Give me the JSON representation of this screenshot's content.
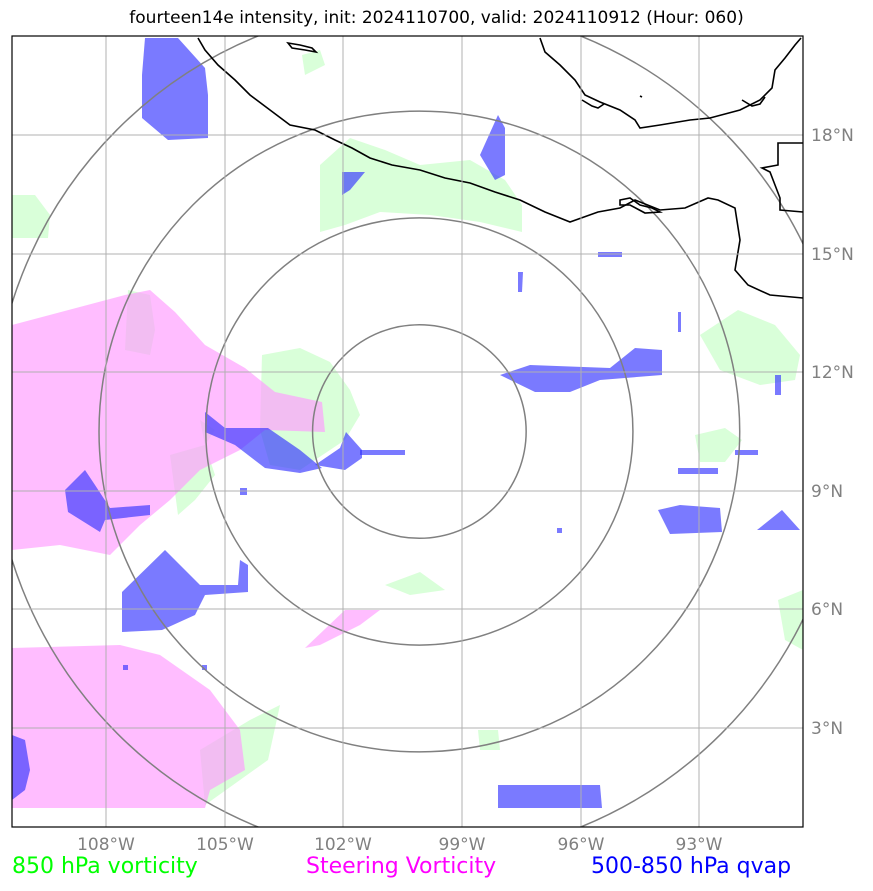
{
  "title": "fourteen14e intensity, init: 2024110700, valid: 2024110912 (Hour: 060)",
  "map": {
    "lon_labels": [
      "108°W",
      "105°W",
      "102°W",
      "99°W",
      "96°W",
      "93°W"
    ],
    "lat_labels": [
      "18°N",
      "15°N",
      "12°N",
      "9°N",
      "6°N",
      "3°N"
    ],
    "extent": {
      "lon_min": -110.5,
      "lon_max": -90.5,
      "lat_min": 0.5,
      "lat_max": 20.5
    },
    "storm_center": {
      "lon": -100.2,
      "lat": 10.5
    },
    "range_rings_deg": [
      2.7,
      5.4,
      8.1,
      10.8
    ],
    "colors": {
      "frame": "#000000",
      "grid": "#b0b0b0",
      "rings": "#808080",
      "coast": "#000000",
      "vorticity_850": "#ccffcc",
      "steering_vorticity": "#ff99ff",
      "qvap_500_850": "#3333ff"
    }
  },
  "legend": {
    "green_label": "850 hPa vorticity",
    "magenta_label": "Steering Vorticity",
    "blue_label": "500-850 hPa qvap",
    "colors": {
      "green": "#00ff00",
      "magenta": "#ff00ff",
      "blue": "#0000ff"
    }
  }
}
